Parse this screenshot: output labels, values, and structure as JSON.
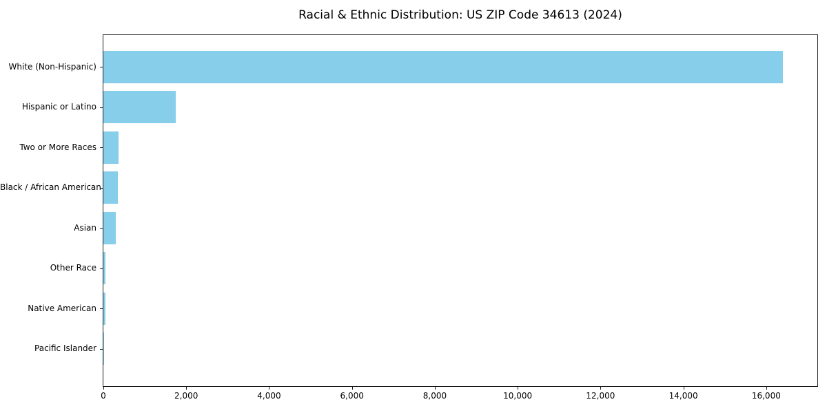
{
  "colors": {
    "bar": "#87CEEB",
    "axis": "#1a1a1a",
    "text": "#000000",
    "background": "#ffffff"
  },
  "chart_data": {
    "type": "bar",
    "orientation": "horizontal",
    "title": "Racial & Ethnic Distribution: US ZIP Code 34613 (2024)",
    "xlabel": "",
    "ylabel": "",
    "categories": [
      "White (Non-Hispanic)",
      "Hispanic or Latino",
      "Two or More Races",
      "Black / African American",
      "Asian",
      "Other Race",
      "Native American",
      "Pacific Islander"
    ],
    "values": [
      16400,
      1750,
      370,
      355,
      295,
      55,
      45,
      5
    ],
    "xlim": [
      0,
      17250
    ],
    "xticks": [
      0,
      2000,
      4000,
      6000,
      8000,
      10000,
      12000,
      14000,
      16000
    ],
    "xtick_labels": [
      "0",
      "2,000",
      "4,000",
      "6,000",
      "8,000",
      "10,000",
      "12,000",
      "14,000",
      "16,000"
    ],
    "grid": false,
    "legend": null,
    "bar_color": "#87CEEB"
  }
}
